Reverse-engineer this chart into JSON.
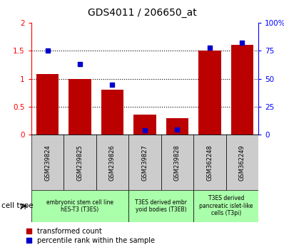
{
  "title": "GDS4011 / 206650_at",
  "samples": [
    "GSM239824",
    "GSM239825",
    "GSM239826",
    "GSM239827",
    "GSM239828",
    "GSM362248",
    "GSM362249"
  ],
  "transformed_count": [
    1.08,
    1.0,
    0.8,
    0.36,
    0.3,
    1.5,
    1.6
  ],
  "percentile_rank": [
    75,
    63,
    45,
    4,
    5,
    78,
    82
  ],
  "ylim_left": [
    0,
    2
  ],
  "ylim_right": [
    0,
    100
  ],
  "yticks_left": [
    0,
    0.5,
    1.0,
    1.5,
    2.0
  ],
  "ytick_labels_left": [
    "0",
    "0.5",
    "1",
    "1.5",
    "2"
  ],
  "yticks_right": [
    0,
    25,
    50,
    75,
    100
  ],
  "ytick_labels_right": [
    "0",
    "25",
    "50",
    "75",
    "100%"
  ],
  "bar_color": "#bb0000",
  "dot_color": "#0000cc",
  "cell_types": [
    {
      "label": "embryonic stem cell line\nhES-T3 (T3ES)",
      "start": 0,
      "end": 3
    },
    {
      "label": "T3ES derived embr\nyoid bodies (T3EB)",
      "start": 3,
      "end": 5
    },
    {
      "label": "T3ES derived\npancreatic islet-like\ncells (T3pi)",
      "start": 5,
      "end": 7
    }
  ],
  "cell_bg": "#aaffaa",
  "sample_bg": "#cccccc",
  "legend_red_label": "transformed count",
  "legend_blue_label": "percentile rank within the sample",
  "cell_type_label": "cell type"
}
